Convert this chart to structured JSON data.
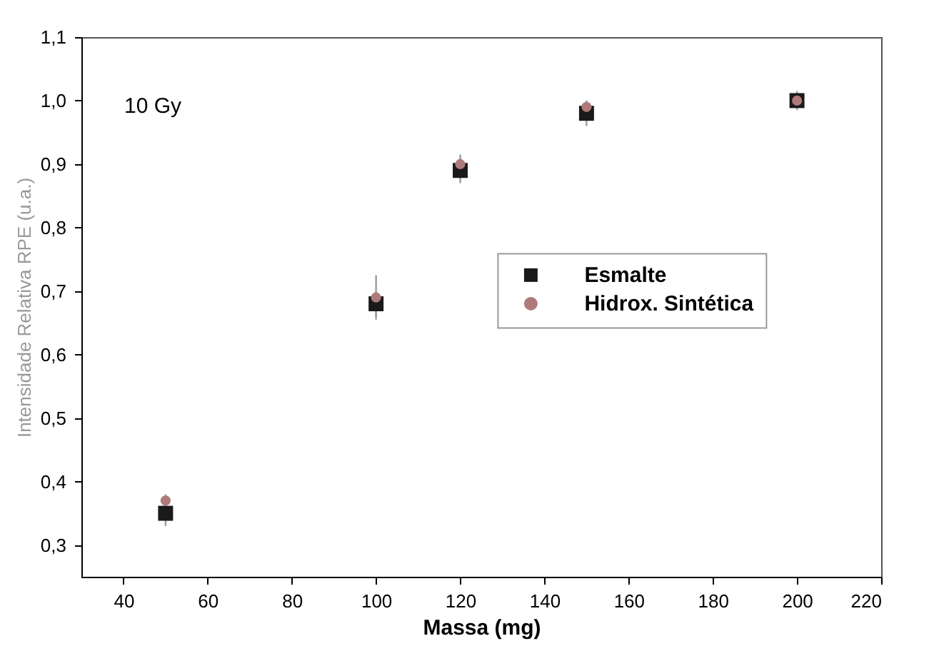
{
  "chart_data": {
    "type": "scatter",
    "xlabel": "Massa (mg)",
    "ylabel": "Intensidade Relativa RPE (u.a.)",
    "annotations": [
      "10 Gy"
    ],
    "x": [
      50,
      100,
      120,
      150,
      200
    ],
    "series": [
      {
        "name": "Esmalte",
        "color": "#1a1a1a",
        "marker": "square",
        "values": [
          0.35,
          0.68,
          0.89,
          0.98,
          1.0
        ],
        "errors": [
          0.02,
          0.02,
          0.02,
          0.02,
          0.01
        ]
      },
      {
        "name": "Hidrox. Sintética",
        "color": "#b07a7a",
        "marker": "circle",
        "values": [
          0.37,
          0.69,
          0.9,
          0.99,
          1.0
        ],
        "errors": [
          0.01,
          0.035,
          0.015,
          0.01,
          0.015
        ]
      }
    ],
    "xlim": [
      30,
      220
    ],
    "xticks": [
      40,
      60,
      80,
      100,
      120,
      140,
      160,
      180,
      200,
      220
    ],
    "ylim": [
      0.25,
      1.1
    ],
    "yticks": [
      {
        "value": 0.3,
        "label": "0,3"
      },
      {
        "value": 0.4,
        "label": "0,4"
      },
      {
        "value": 0.5,
        "label": "0,5"
      },
      {
        "value": 0.6,
        "label": "0,6"
      },
      {
        "value": 0.7,
        "label": "0,7"
      },
      {
        "value": 0.8,
        "label": "0,8"
      },
      {
        "value": 0.9,
        "label": "0,9"
      },
      {
        "value": 1.0,
        "label": "1,0"
      },
      {
        "value": 1.1,
        "label": "1,1"
      }
    ],
    "grid": false,
    "legend": "right"
  }
}
